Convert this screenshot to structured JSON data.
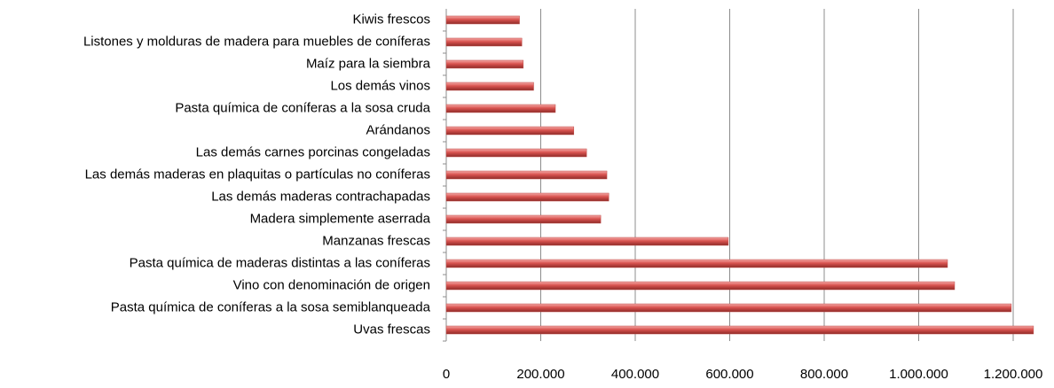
{
  "chart_data": {
    "type": "barh",
    "categories": [
      "Uvas frescas",
      "Pasta química de coníferas a la sosa semiblanqueada",
      "Vino con denominación de origen",
      "Pasta química de maderas distintas a las coníferas",
      "Manzanas frescas",
      "Madera simplemente aserrada",
      "Las demás maderas contrachapadas",
      "Las demás maderas en plaquitas o partículas no coníferas",
      "Las demás carnes porcinas congeladas",
      "Arándanos",
      "Pasta química de coníferas a la sosa cruda",
      "Los demás vinos",
      "Maíz para la siembra",
      "Listones y molduras de madera para muebles de coníferas",
      "Kiwis frescos"
    ],
    "values": [
      1243000,
      1196000,
      1076000,
      1061000,
      597000,
      327000,
      344000,
      340000,
      297000,
      270000,
      231000,
      185000,
      163000,
      160000,
      155000
    ],
    "color": "#c0504d",
    "xlim": [
      0,
      1200000
    ],
    "xticks": [
      0,
      {
        "value": 200000,
        "label": "200.000"
      },
      {
        "value": 400000,
        "label": "400.000"
      },
      {
        "value": 600000,
        "label": "600.000"
      },
      {
        "value": 800000,
        "label": "800.000"
      },
      {
        "value": 1000000,
        "label": "1.000.000"
      },
      {
        "value": 1200000,
        "label": "1.200.000"
      }
    ],
    "grid": true
  }
}
